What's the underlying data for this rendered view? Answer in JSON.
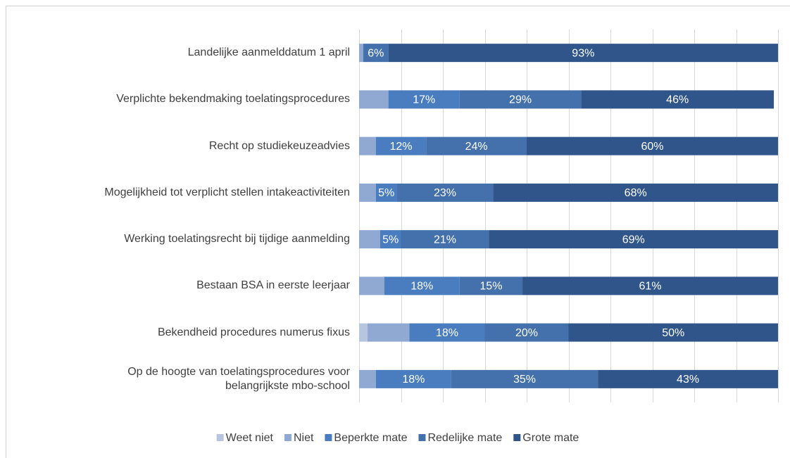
{
  "chart_data": {
    "type": "stacked-barh",
    "categories": [
      "Landelijke aanmelddatum 1 april",
      "Verplichte bekendmaking toelatingsprocedures",
      "Recht op studiekeuzeadvies",
      "Mogelijkheid tot verplicht stellen intakeactiviteiten",
      "Werking toelatingsrecht bij tijdige aanmelding",
      "Bestaan BSA in eerste leerjaar",
      "Bekendheid procedures numerus fixus",
      "Op de hoogte van toelatingsprocedures voor\nbelangrijkste mbo-school"
    ],
    "series": [
      {
        "name": "Weet niet",
        "color": "#b7c6e0",
        "values": [
          0,
          0,
          0,
          0,
          0,
          0,
          2,
          0
        ],
        "value_labels": [
          null,
          null,
          null,
          null,
          null,
          null,
          null,
          null
        ]
      },
      {
        "name": "Niet",
        "color": "#8fa9d3",
        "values": [
          1,
          7,
          4,
          4,
          5,
          6,
          10,
          4
        ],
        "value_labels": [
          null,
          null,
          null,
          null,
          null,
          null,
          null,
          null
        ]
      },
      {
        "name": "Beperkte mate",
        "color": "#4a7dc0",
        "values": [
          0,
          17,
          12,
          5,
          5,
          18,
          18,
          18
        ],
        "value_labels": [
          null,
          "17%",
          "12%",
          "5%",
          "5%",
          "18%",
          "18%",
          "18%"
        ]
      },
      {
        "name": "Redelijke mate",
        "color": "#4470ab",
        "values": [
          6,
          29,
          24,
          23,
          21,
          15,
          20,
          35
        ],
        "value_labels": [
          "6%",
          "29%",
          "24%",
          "23%",
          "21%",
          "15%",
          "20%",
          "35%"
        ]
      },
      {
        "name": "Grote mate",
        "color": "#30558a",
        "values": [
          93,
          46,
          60,
          68,
          69,
          61,
          50,
          43
        ],
        "value_labels": [
          "93%",
          "46%",
          "60%",
          "68%",
          "69%",
          "61%",
          "50%",
          "43%"
        ]
      }
    ],
    "xlim": [
      0,
      100
    ],
    "xticks": [
      0,
      10,
      20,
      30,
      40,
      50,
      60,
      70,
      80,
      90,
      100
    ],
    "grid": true,
    "legend": "bottom"
  }
}
